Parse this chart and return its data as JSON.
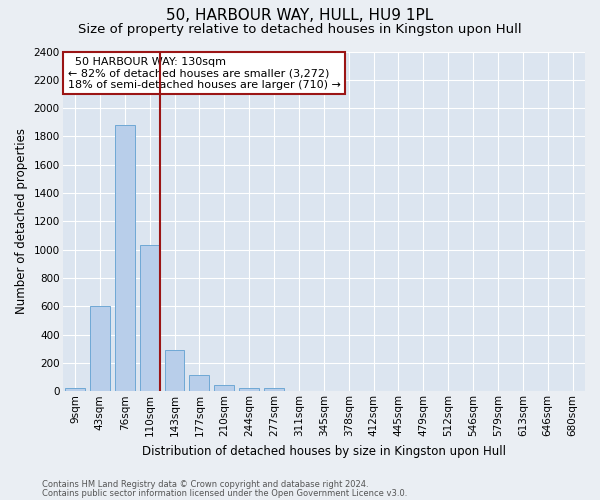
{
  "title1": "50, HARBOUR WAY, HULL, HU9 1PL",
  "title2": "Size of property relative to detached houses in Kingston upon Hull",
  "xlabel": "Distribution of detached houses by size in Kingston upon Hull",
  "ylabel": "Number of detached properties",
  "footer1": "Contains HM Land Registry data © Crown copyright and database right 2024.",
  "footer2": "Contains public sector information licensed under the Open Government Licence v3.0.",
  "categories": [
    "9sqm",
    "43sqm",
    "76sqm",
    "110sqm",
    "143sqm",
    "177sqm",
    "210sqm",
    "244sqm",
    "277sqm",
    "311sqm",
    "345sqm",
    "378sqm",
    "412sqm",
    "445sqm",
    "479sqm",
    "512sqm",
    "546sqm",
    "579sqm",
    "613sqm",
    "646sqm",
    "680sqm"
  ],
  "values": [
    20,
    600,
    1880,
    1030,
    290,
    115,
    45,
    25,
    20,
    0,
    0,
    0,
    0,
    0,
    0,
    0,
    0,
    0,
    0,
    0,
    0
  ],
  "bar_color": "#b8ceea",
  "bar_edge_color": "#6fa8d5",
  "vline_x_index": 3,
  "vline_x_offset": 0.4,
  "vline_color": "#9b1515",
  "annotation_text": "  50 HARBOUR WAY: 130sqm\n← 82% of detached houses are smaller (3,272)\n18% of semi-detached houses are larger (710) →",
  "annotation_box_color": "#ffffff",
  "annotation_box_edge_color": "#9b1515",
  "ylim": [
    0,
    2400
  ],
  "yticks": [
    0,
    200,
    400,
    600,
    800,
    1000,
    1200,
    1400,
    1600,
    1800,
    2000,
    2200,
    2400
  ],
  "bg_color": "#eaeef3",
  "plot_bg_color": "#dce5f0",
  "grid_color": "#ffffff",
  "title1_fontsize": 11,
  "title2_fontsize": 9.5,
  "xlabel_fontsize": 8.5,
  "ylabel_fontsize": 8.5,
  "tick_fontsize": 7.5,
  "footer_fontsize": 6,
  "annot_fontsize": 8
}
